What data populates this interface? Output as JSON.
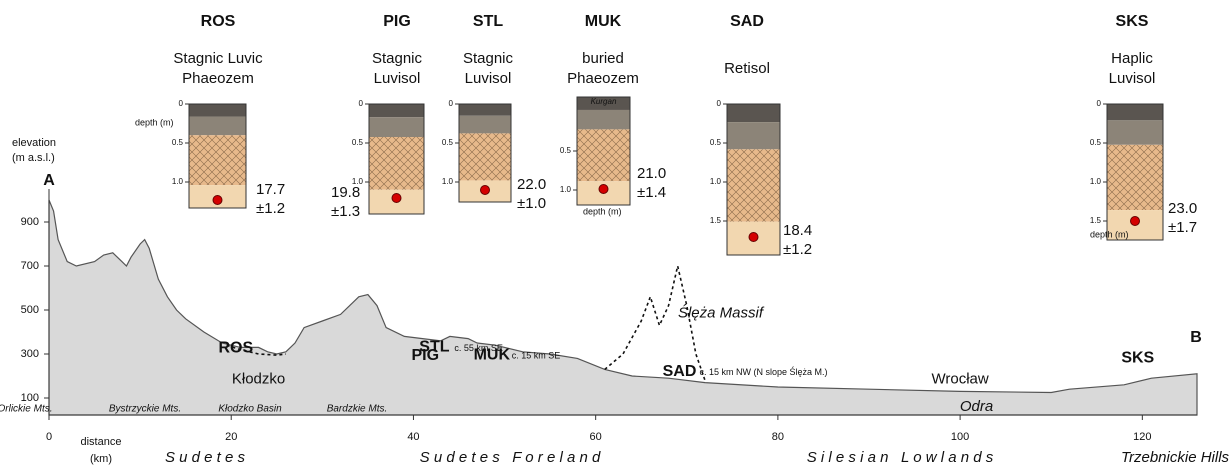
{
  "chart_data": {
    "type": "area",
    "y_label_lines": [
      "elevation",
      "(m a.s.l.)"
    ],
    "x_label_lines": [
      "distance",
      "(km)"
    ],
    "start_label": "A",
    "end_label": "B",
    "x": [
      0,
      0.5,
      1,
      2,
      3,
      5,
      6,
      7,
      8,
      8.5,
      9,
      10,
      10.5,
      11,
      12,
      13,
      14,
      15,
      17,
      19,
      21,
      23,
      24,
      25,
      26,
      27,
      28,
      30,
      32,
      34,
      35,
      36,
      37,
      39,
      41,
      43,
      44,
      46,
      47,
      49,
      52,
      55,
      58,
      61,
      64,
      68,
      72,
      80,
      90,
      100,
      110,
      112,
      118,
      121,
      126
    ],
    "series": [
      {
        "color": "#d9d9d9",
        "values": [
          1000,
          950,
          820,
          720,
          700,
          720,
          750,
          760,
          720,
          700,
          740,
          800,
          820,
          780,
          640,
          560,
          500,
          460,
          400,
          350,
          330,
          330,
          310,
          300,
          310,
          350,
          420,
          450,
          480,
          560,
          570,
          520,
          420,
          380,
          370,
          360,
          380,
          370,
          350,
          340,
          310,
          300,
          280,
          230,
          200,
          190,
          170,
          150,
          140,
          130,
          125,
          140,
          160,
          190,
          210
        ]
      }
    ],
    "hidden_relief": [
      {
        "x": [
          19.5,
          21,
          23,
          25,
          26
        ],
        "values": [
          340,
          320,
          300,
          295,
          300
        ]
      },
      {
        "x": [
          61,
          63,
          65,
          66,
          67,
          68,
          69,
          70,
          71,
          72
        ],
        "values": [
          230,
          300,
          450,
          560,
          430,
          520,
          700,
          520,
          300,
          180
        ]
      }
    ],
    "xlim": [
      0,
      126
    ],
    "ylim": [
      0,
      1050
    ],
    "xticks": [
      0,
      20,
      40,
      60,
      80,
      100,
      120
    ],
    "yticks": [
      100,
      300,
      500,
      700,
      900
    ],
    "site_labels": [
      {
        "text": "ROS",
        "x": 20.5,
        "y": 325
      },
      {
        "text": "STL",
        "x": 42.3,
        "y": 330,
        "note": "c. 55 km SE"
      },
      {
        "text": "PIG",
        "x": 41.3,
        "y": 292
      },
      {
        "text": "MUK",
        "x": 48.6,
        "y": 295,
        "note": "c. 15 km SE"
      },
      {
        "text": "SAD",
        "x": 69.2,
        "y": 220,
        "note": "c. 15 km NW (N slope Ślęża M.)"
      },
      {
        "text": "SKS",
        "x": 119.5,
        "y": 280
      }
    ],
    "places": [
      {
        "text": "Kłodzko",
        "color": "#c00000",
        "x": 23,
        "y": 185
      },
      {
        "text": "Wrocław",
        "color": "#c00000",
        "x": 100,
        "y": 185
      },
      {
        "text": "Odra",
        "color": "#2e6bc4",
        "x": 101.8,
        "y": 60,
        "italic": true
      },
      {
        "text": "Ślęża Massif",
        "color": "#111",
        "x": 73.7,
        "y": 485,
        "italic": true
      }
    ],
    "ranges": [
      "Orlickie Mts.",
      "Bystrzyckie Mts.",
      "Kłodzko Basin",
      "Bardzkie Mts."
    ],
    "regions": [
      "S u d e t e s",
      "S u d e t e s   F o r e l a n d",
      "S i l e s i a n   L o w l a n d s",
      "Trzebnickie Hills"
    ]
  },
  "profiles": [
    {
      "code": "ROS",
      "name_lines": [
        "Stagnic Luvic",
        "Phaeozem"
      ],
      "age": "17.7",
      "error": "±1.2",
      "depth_label": "depth (m)",
      "depth_ticks": [
        0,
        {
          "value": 0.5,
          "label": "0.5"
        },
        {
          "value": 1.0,
          "label": "1.0"
        }
      ]
    },
    {
      "code": "PIG",
      "name_lines": [
        "Stagnic",
        "Luvisol"
      ],
      "age": "19.8",
      "error": "±1.3",
      "depth_ticks": [
        0,
        {
          "value": 0.5,
          "label": "0.5"
        },
        {
          "value": 1.0,
          "label": "1.0"
        }
      ]
    },
    {
      "code": "STL",
      "name_lines": [
        "Stagnic",
        "Luvisol"
      ],
      "age": "22.0",
      "error": "±1.0",
      "depth_ticks": [
        0,
        {
          "value": 0.5,
          "label": "0.5"
        },
        {
          "value": 1.0,
          "label": "1.0"
        }
      ]
    },
    {
      "code": "MUK",
      "name_lines": [
        "buried",
        "Phaeozem"
      ],
      "age": "21.0",
      "error": "±1.4",
      "depth_label": "depth (m)",
      "mound": "Kurgan",
      "depth_ticks": [
        {
          "value": 0.5,
          "label": "0.5"
        },
        {
          "value": 1.0,
          "label": "1.0"
        }
      ]
    },
    {
      "code": "SAD",
      "name_lines": [
        "Retisol"
      ],
      "age": "18.4",
      "error": "±1.2",
      "depth_ticks": [
        0,
        {
          "value": 0.5,
          "label": "0.5"
        },
        {
          "value": 1.0,
          "label": "1.0"
        },
        {
          "value": 1.5,
          "label": "1.5"
        }
      ]
    },
    {
      "code": "SKS",
      "name_lines": [
        "Haplic",
        "Luvisol"
      ],
      "age": "23.0",
      "error": "±1.7",
      "depth_label": "depth (m)",
      "depth_ticks": [
        0,
        {
          "value": 0.5,
          "label": "0.5"
        },
        {
          "value": 1.0,
          "label": "1.0"
        },
        {
          "value": 1.5,
          "label": "1.5"
        }
      ]
    }
  ]
}
